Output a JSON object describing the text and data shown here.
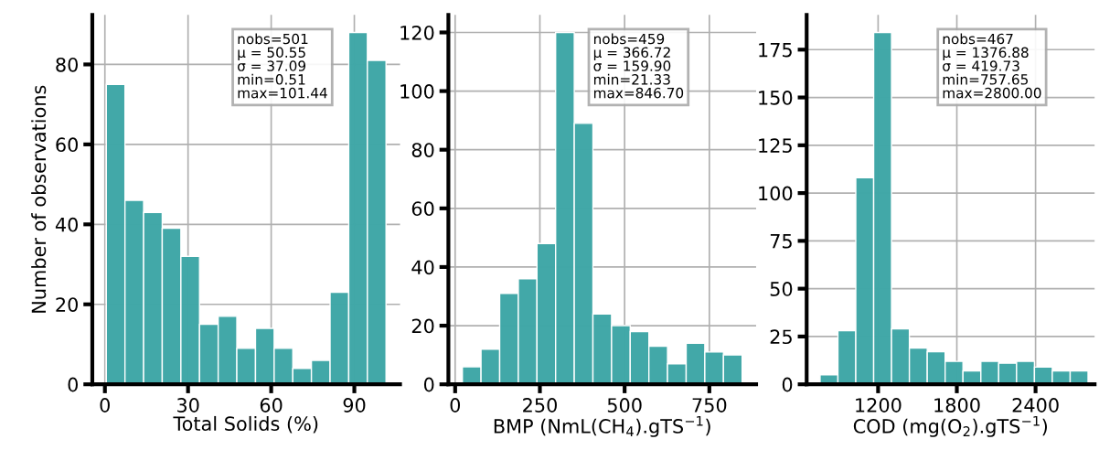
{
  "chart_data": [
    {
      "type": "histogram",
      "xlabel": "Total Solids (%)",
      "ylabel": "Number of observations",
      "color": "#3fa7a7",
      "grid": true,
      "bins": [
        0.51,
        7.24,
        13.97,
        20.69,
        27.42,
        34.15,
        40.88,
        47.61,
        54.34,
        61.07,
        67.8,
        74.52,
        81.25,
        87.98,
        94.71,
        101.44
      ],
      "values": [
        75,
        46,
        43,
        39,
        32,
        15,
        17,
        9,
        14,
        9,
        4,
        6,
        23,
        88,
        81
      ],
      "xlim": [
        -4.54,
        106.49
      ],
      "xticks": [
        0,
        30,
        60,
        90
      ],
      "ylim": [
        0,
        92.4
      ],
      "yticks": [
        0,
        20,
        40,
        60,
        80
      ],
      "annotations": [
        "nobs=501\nμ = 50.55\nσ = 37.09\nmin=0.51\nmax=101.44"
      ]
    },
    {
      "type": "histogram",
      "xlabel": "BMP (NmL(CH$_{4}$).gTS$^{−1}$)",
      "color": "#3fa7a7",
      "grid": true,
      "bins": [
        21.33,
        76.35,
        131.38,
        186.4,
        241.43,
        296.45,
        351.48,
        406.5,
        461.53,
        516.55,
        571.58,
        626.6,
        681.63,
        736.65,
        791.68,
        846.7
      ],
      "values": [
        6,
        12,
        31,
        36,
        48,
        120,
        89,
        24,
        20,
        18,
        13,
        7,
        14,
        11,
        10
      ],
      "xlim": [
        -19.94,
        887.97
      ],
      "xticks": [
        0,
        250,
        500,
        750
      ],
      "ylim": [
        0,
        126
      ],
      "yticks": [
        0,
        20,
        40,
        60,
        80,
        100,
        120
      ],
      "annotations": [
        "nobs=459\nμ = 366.72\nσ = 159.90\nmin=21.33\nmax=846.70"
      ]
    },
    {
      "type": "histogram",
      "xlabel": "COD (mg(O$_{2}$).gTS$^{−1}$)",
      "color": "#3fa7a7",
      "grid": true,
      "bins": [
        757.65,
        893.81,
        1029.96,
        1166.12,
        1302.28,
        1438.44,
        1574.59,
        1710.75,
        1846.91,
        1983.06,
        2119.22,
        2255.38,
        2391.53,
        2527.69,
        2663.85,
        2800.0
      ],
      "values": [
        5,
        28,
        108,
        184,
        29,
        19,
        17,
        12,
        7,
        12,
        11,
        12,
        9,
        7,
        7
      ],
      "xlim": [
        655.53,
        2850
      ],
      "xticks": [
        1200,
        1800,
        2400
      ],
      "ylim": [
        0,
        193.2
      ],
      "yticks": [
        0,
        25,
        50,
        75,
        100,
        125,
        150,
        175
      ],
      "annotations": [
        "nobs=467\nμ = 1376.88\nσ = 419.73\nmin=757.65\nmax=2800.00"
      ]
    }
  ]
}
